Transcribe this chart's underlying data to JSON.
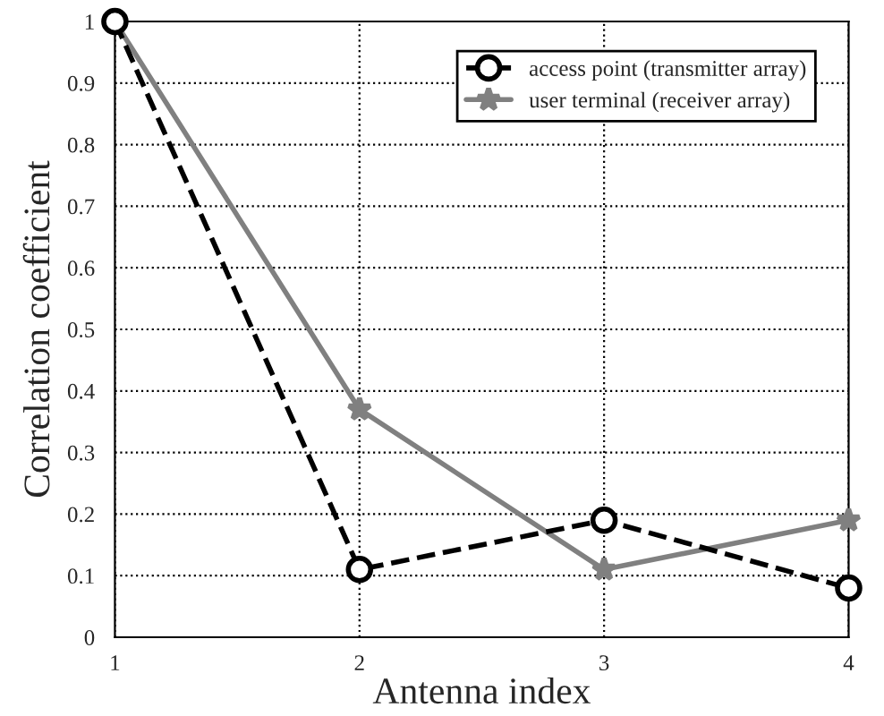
{
  "chart_data": {
    "type": "line",
    "xlabel": "Antenna index",
    "ylabel": "Correlation coefficient",
    "x": [
      1,
      2,
      3,
      4
    ],
    "series": [
      {
        "name": "access point (transmitter array)",
        "color": "#000000",
        "values": [
          1,
          0.11,
          0.19,
          0.08
        ],
        "marker": "circle",
        "line_style": "dashed"
      },
      {
        "name": "user terminal (receiver array)",
        "color": "#808080",
        "values": [
          1,
          0.37,
          0.11,
          0.19
        ],
        "marker": "star",
        "line_style": "solid"
      }
    ],
    "xlim": [
      1,
      4
    ],
    "xticks": [
      1,
      2,
      3,
      4
    ],
    "ylim": [
      0,
      1
    ],
    "yticks": [
      0,
      0.1,
      0.2,
      0.3,
      0.4,
      0.5,
      0.6,
      0.7,
      0.8,
      0.9,
      1
    ],
    "grid": true,
    "legend": "top right"
  }
}
